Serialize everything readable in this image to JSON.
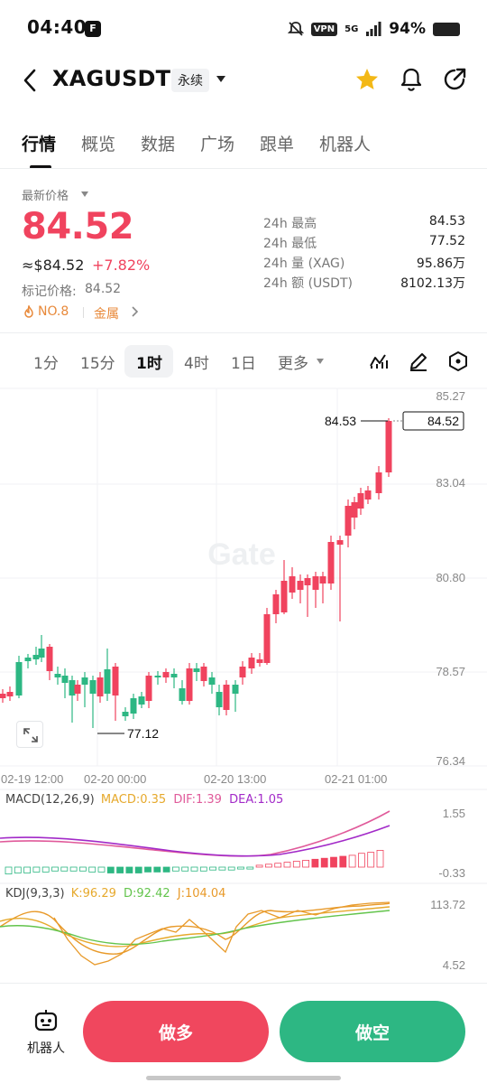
{
  "status_bar": {
    "time": "04:40",
    "vpn": "VPN",
    "network": "5G",
    "battery": "94%"
  },
  "header": {
    "symbol": "XAGUSDT",
    "contract_type": "永续"
  },
  "tabs": [
    "行情",
    "概览",
    "数据",
    "广场",
    "跟单",
    "机器人"
  ],
  "price": {
    "label": "最新价格",
    "last": "84.52",
    "usd": "≈$84.52",
    "change": "+7.82%",
    "mark_label": "标记价格:",
    "mark_value": "84.52",
    "rank": "NO.8",
    "sector": "金属"
  },
  "stats": [
    {
      "label": "24h  最高",
      "value": "84.53"
    },
    {
      "label": "24h  最低",
      "value": "77.52"
    },
    {
      "label": "24h  量 (XAG)",
      "value": "95.86万"
    },
    {
      "label": "24h  额 (USDT)",
      "value": "8102.13万"
    }
  ],
  "intervals": [
    "1分",
    "15分",
    "1时",
    "4时",
    "1日",
    "更多"
  ],
  "active_interval": "1时",
  "chart": {
    "watermark": "Gate",
    "y_ticks": [
      "85.27",
      "83.04",
      "80.80",
      "78.57",
      "76.34"
    ],
    "x_ticks": [
      "02-19 12:00",
      "02-20 00:00",
      "02-20 13:00",
      "02-21 01:00"
    ],
    "high_marker": "84.53",
    "low_marker": "77.12",
    "current_price_tag": "84.52",
    "macd_ticks": [
      "1.55",
      "-0.33"
    ],
    "kdj_ticks": [
      "113.72",
      "4.52"
    ]
  },
  "indicators": {
    "macd": {
      "name": "MACD(12,26,9)",
      "macd": "MACD:0.35",
      "dif": "DIF:1.39",
      "dea": "DEA:1.05"
    },
    "kdj": {
      "name": "KDJ(9,3,3)",
      "k": "K:96.29",
      "d": "D:92.42",
      "j": "J:104.04"
    }
  },
  "colors": {
    "up": "#f0435e",
    "down": "#2db783",
    "macd": "#e6a92c",
    "dif": "#e05a9a",
    "dea": "#a22ac8",
    "k": "#e6a92c",
    "d": "#63c44c",
    "j": "#e89a2a"
  },
  "bottom": {
    "robot_label": "机器人",
    "long_label": "做多",
    "short_label": "做空"
  }
}
